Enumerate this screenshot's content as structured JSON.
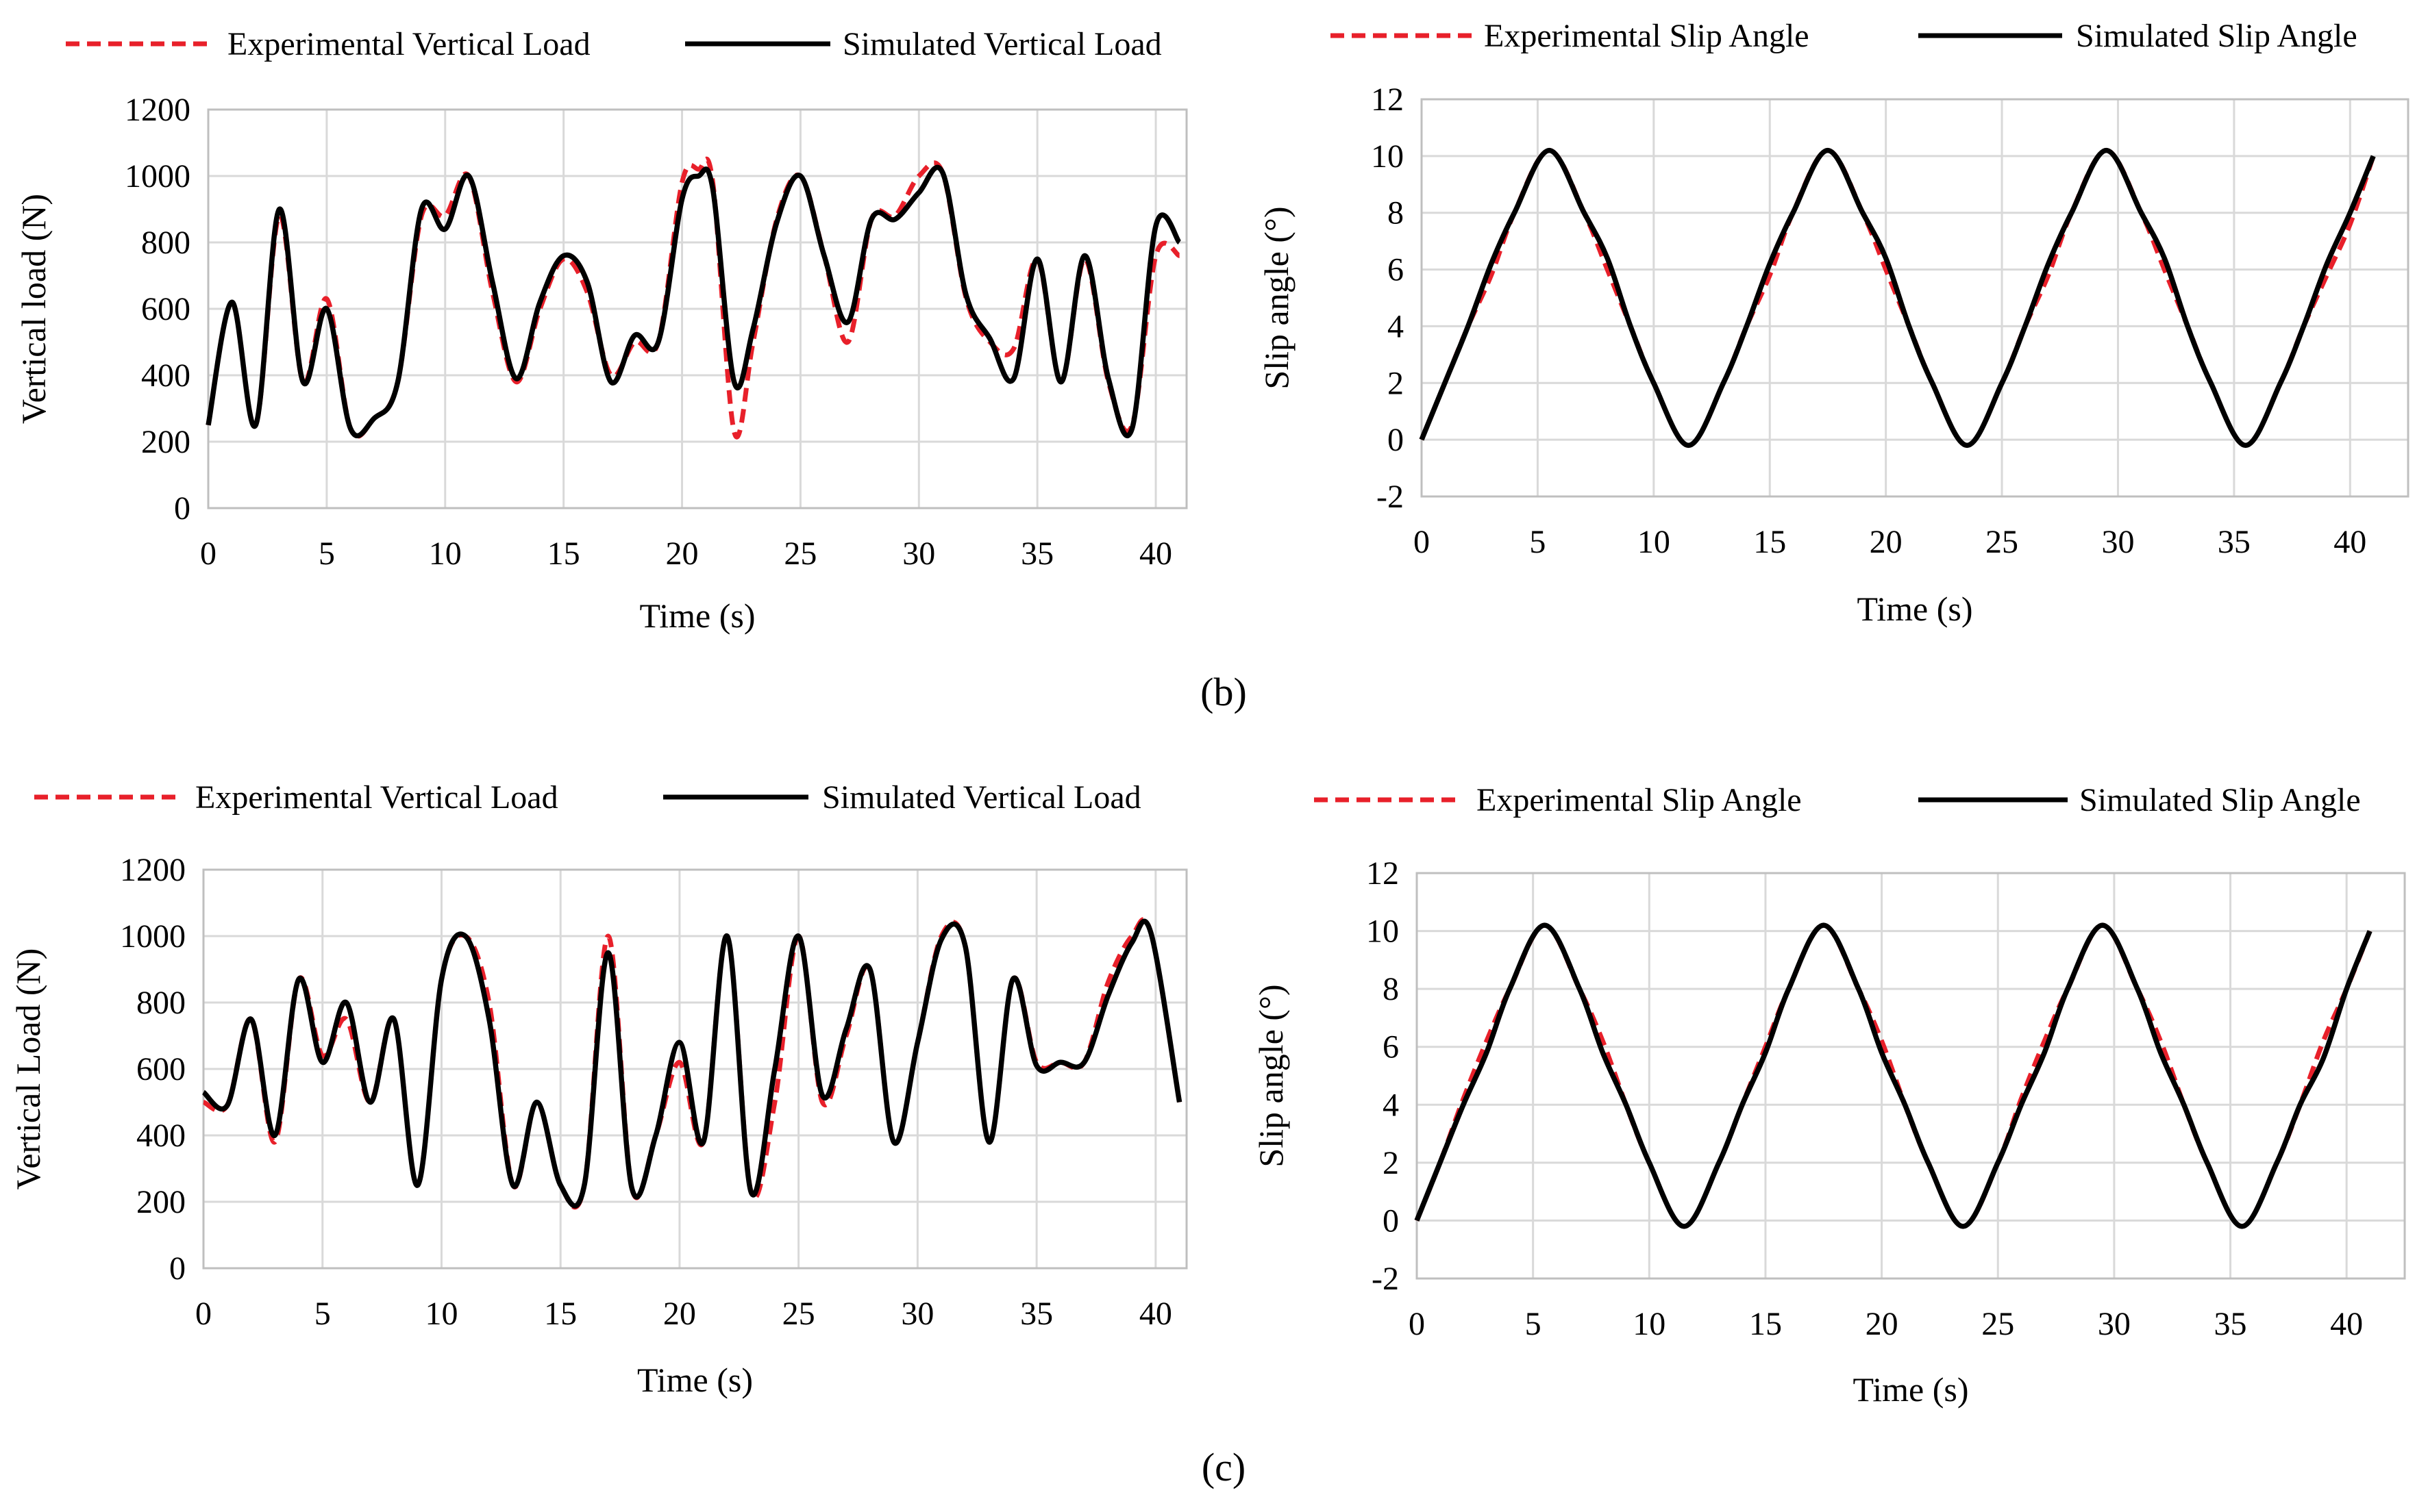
{
  "captions": {
    "b": "(b)",
    "c": "(c)"
  },
  "colors": {
    "experimental": "#e8202a",
    "simulated": "#000000",
    "grid": "#d9d9d9"
  },
  "chart_data": [
    {
      "id": "b-load",
      "type": "line",
      "title": "",
      "xlabel": "Time (s)",
      "ylabel": "Vertical load (N)",
      "xlim": [
        0,
        41.3
      ],
      "ylim": [
        0,
        1200
      ],
      "xticks": [
        0,
        5,
        10,
        15,
        20,
        25,
        30,
        35,
        40
      ],
      "yticks": [
        0,
        200,
        400,
        600,
        800,
        1000,
        1200
      ],
      "legend": [
        "Experimental Vertical Load",
        "Simulated Vertical Load"
      ],
      "series": [
        {
          "name": "Experimental Vertical Load",
          "style": "dashed",
          "x": [
            0,
            1,
            2,
            3,
            4,
            5,
            6,
            7,
            8,
            9,
            10,
            11,
            12,
            13,
            14,
            15,
            16,
            17,
            18,
            19,
            20,
            20.7,
            21.3,
            22.2,
            23,
            24,
            25,
            26,
            27,
            28,
            29,
            30,
            31,
            32,
            33,
            34,
            35,
            36,
            37,
            38,
            39,
            40,
            41
          ],
          "y": [
            250,
            620,
            250,
            880,
            380,
            630,
            240,
            270,
            380,
            880,
            880,
            1000,
            650,
            380,
            600,
            750,
            650,
            400,
            500,
            500,
            980,
            1020,
            980,
            230,
            500,
            870,
            1000,
            760,
            500,
            870,
            880,
            1000,
            1010,
            630,
            500,
            480,
            750,
            380,
            750,
            380,
            250,
            760,
            760
          ]
        },
        {
          "name": "Simulated Vertical Load",
          "style": "solid",
          "x": [
            0,
            1,
            2,
            3,
            4,
            5,
            6,
            7,
            8,
            9,
            10,
            11,
            12,
            13,
            14,
            15,
            16,
            17,
            18,
            19,
            20,
            20.7,
            21.3,
            22.2,
            23,
            24,
            25,
            26,
            27,
            28,
            29,
            30,
            31,
            32,
            33,
            34,
            35,
            36,
            37,
            38,
            39,
            40,
            41
          ],
          "y": [
            250,
            620,
            250,
            900,
            380,
            600,
            240,
            270,
            380,
            900,
            840,
            1000,
            680,
            390,
            620,
            760,
            680,
            380,
            520,
            500,
            930,
            1000,
            960,
            380,
            540,
            860,
            1000,
            760,
            560,
            870,
            870,
            950,
            1010,
            640,
            510,
            390,
            750,
            380,
            760,
            390,
            240,
            850,
            800
          ]
        }
      ]
    },
    {
      "id": "b-slip",
      "type": "line",
      "title": "",
      "xlabel": "Time (s)",
      "ylabel": "Slip angle (°)",
      "xlim": [
        0,
        42.5
      ],
      "ylim": [
        -2,
        12
      ],
      "xticks": [
        0,
        5,
        10,
        15,
        20,
        25,
        30,
        35,
        40
      ],
      "yticks": [
        -2,
        0,
        2,
        4,
        6,
        8,
        10,
        12
      ],
      "legend": [
        "Experimental Slip Angle",
        "Simulated Slip Angle"
      ],
      "series": [
        {
          "name": "Experimental Slip Angle",
          "style": "dashed",
          "x": [
            0,
            1,
            2,
            3,
            4,
            5.5,
            7,
            8,
            9,
            10,
            11.5,
            13,
            14,
            15,
            16,
            17.5,
            19,
            20,
            21,
            22,
            23.5,
            25,
            26,
            27,
            28,
            29.5,
            31,
            32,
            33,
            34,
            35.5,
            37,
            38,
            39,
            40,
            41
          ],
          "y": [
            0,
            2,
            4,
            5.8,
            8,
            10.2,
            8,
            6,
            4,
            2,
            -0.2,
            2,
            4,
            5.8,
            8,
            10.2,
            8,
            6,
            4,
            2,
            -0.2,
            2,
            4,
            5.8,
            8,
            10.2,
            8,
            6,
            4,
            2,
            -0.2,
            2,
            4,
            5.8,
            7.6,
            10
          ]
        },
        {
          "name": "Simulated Slip Angle",
          "style": "solid",
          "x": [
            0,
            1,
            2,
            3,
            4,
            5.5,
            7,
            8,
            9,
            10,
            11.5,
            13,
            14,
            15,
            16,
            17.5,
            19,
            20,
            21,
            22,
            23.5,
            25,
            26,
            27,
            28,
            29.5,
            31,
            32,
            33,
            34,
            35.5,
            37,
            38,
            39,
            40,
            41
          ],
          "y": [
            0,
            2,
            4,
            6.2,
            8,
            10.2,
            8,
            6.4,
            4,
            2,
            -0.2,
            2,
            4,
            6.2,
            8,
            10.2,
            8,
            6.4,
            4,
            2,
            -0.2,
            2,
            4,
            6.2,
            8,
            10.2,
            8,
            6.4,
            4,
            2,
            -0.2,
            2,
            4,
            6.2,
            8,
            10
          ]
        }
      ]
    },
    {
      "id": "c-load",
      "type": "line",
      "title": "",
      "xlabel": "Time (s)",
      "ylabel": "Vertical Load (N)",
      "xlim": [
        0,
        41.3
      ],
      "ylim": [
        0,
        1200
      ],
      "xticks": [
        0,
        5,
        10,
        15,
        20,
        25,
        30,
        35,
        40
      ],
      "yticks": [
        0,
        200,
        400,
        600,
        800,
        1000,
        1200
      ],
      "legend": [
        "Experimental Vertical Load",
        "Simulated Vertical Load"
      ],
      "series": [
        {
          "name": "Experimental Vertical Load",
          "style": "dashed",
          "x": [
            0,
            1,
            2,
            3,
            4,
            5,
            6,
            7,
            8,
            9,
            10,
            11,
            12,
            13,
            14,
            15,
            16,
            17,
            18,
            19,
            20,
            21,
            22,
            23,
            24,
            25,
            26,
            27,
            28,
            29,
            30,
            31,
            32,
            33,
            34,
            35,
            36,
            37,
            38,
            39,
            39.8,
            41
          ],
          "y": [
            500,
            490,
            750,
            380,
            870,
            640,
            750,
            500,
            750,
            250,
            870,
            1000,
            800,
            250,
            500,
            250,
            250,
            1000,
            240,
            400,
            620,
            380,
            1000,
            230,
            500,
            1000,
            500,
            700,
            900,
            380,
            680,
            1000,
            970,
            380,
            870,
            620,
            620,
            620,
            860,
            1000,
            1010,
            500
          ]
        },
        {
          "name": "Simulated Vertical Load",
          "style": "solid",
          "x": [
            0,
            1,
            2,
            3,
            4,
            5,
            6,
            7,
            8,
            9,
            10,
            11,
            12,
            13,
            14,
            15,
            16,
            17,
            18,
            19,
            20,
            21,
            22,
            23,
            24,
            25,
            26,
            27,
            28,
            29,
            30,
            31,
            32,
            33,
            34,
            35,
            36,
            37,
            38,
            39,
            39.8,
            41
          ],
          "y": [
            530,
            490,
            750,
            400,
            870,
            620,
            800,
            500,
            750,
            250,
            870,
            1000,
            750,
            250,
            500,
            250,
            250,
            950,
            240,
            400,
            680,
            380,
            1000,
            230,
            600,
            1000,
            520,
            720,
            900,
            380,
            680,
            990,
            970,
            380,
            870,
            610,
            620,
            620,
            820,
            980,
            1010,
            500
          ]
        }
      ]
    },
    {
      "id": "c-slip",
      "type": "line",
      "title": "",
      "xlabel": "Time (s)",
      "ylabel": "Slip angle (°)",
      "xlim": [
        0,
        42.5
      ],
      "ylim": [
        -2,
        12
      ],
      "xticks": [
        0,
        5,
        10,
        15,
        20,
        25,
        30,
        35,
        40
      ],
      "yticks": [
        -2,
        0,
        2,
        4,
        6,
        8,
        10,
        12
      ],
      "legend": [
        "Experimental Slip Angle",
        "Simulated Slip Angle"
      ],
      "series": [
        {
          "name": "Experimental Slip Angle",
          "style": "dashed",
          "x": [
            0,
            1,
            2,
            3,
            4,
            5.5,
            7,
            8,
            9,
            10,
            11.5,
            13,
            14,
            15,
            16,
            17.5,
            19,
            20,
            21,
            22,
            23.5,
            25,
            26,
            27,
            28,
            29.5,
            31,
            32,
            33,
            34,
            35.5,
            37,
            38,
            39,
            40,
            41
          ],
          "y": [
            0,
            2,
            4.2,
            6.2,
            8,
            10.2,
            8,
            6.2,
            4,
            2,
            -0.2,
            2,
            4,
            6,
            8,
            10.2,
            8,
            6.2,
            4,
            2,
            -0.2,
            2,
            4.2,
            6.2,
            8,
            10.2,
            8,
            6.2,
            4,
            2,
            -0.2,
            2,
            4,
            6.2,
            8,
            10
          ]
        },
        {
          "name": "Simulated Slip Angle",
          "style": "solid",
          "x": [
            0,
            1,
            2,
            3,
            4,
            5.5,
            7,
            8,
            9,
            10,
            11.5,
            13,
            14,
            15,
            16,
            17.5,
            19,
            20,
            21,
            22,
            23.5,
            25,
            26,
            27,
            28,
            29.5,
            31,
            32,
            33,
            34,
            35.5,
            37,
            38,
            39,
            40,
            41
          ],
          "y": [
            0,
            2,
            4,
            5.8,
            8,
            10.2,
            8,
            5.8,
            4,
            2,
            -0.2,
            2,
            4,
            5.8,
            8,
            10.2,
            8,
            5.8,
            4,
            2,
            -0.2,
            2,
            4,
            5.8,
            8,
            10.2,
            8,
            5.8,
            4,
            2,
            -0.2,
            2,
            4,
            5.6,
            8,
            10
          ]
        }
      ]
    }
  ]
}
